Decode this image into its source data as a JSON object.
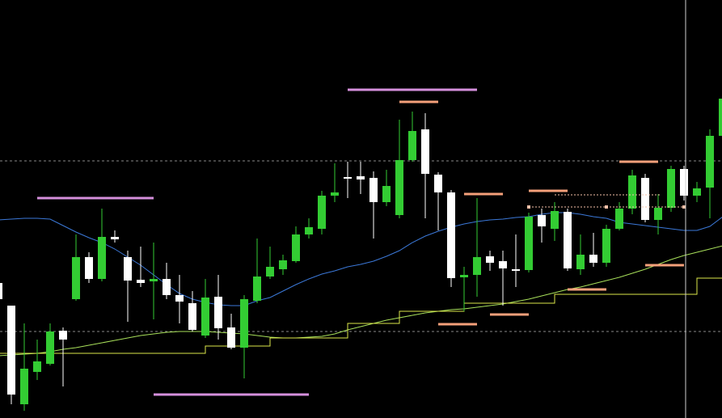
{
  "chart_data": {
    "type": "candlestick",
    "ylim": [
      0,
      517
    ],
    "hlines": [
      318,
      107
    ],
    "up_color": "#33cc33",
    "down_color": "#ffffff",
    "categories": [
      null,
      null,
      null,
      null,
      null,
      null,
      null,
      null,
      null,
      null,
      null,
      null,
      null,
      null,
      null,
      null,
      null,
      null,
      null,
      null,
      null,
      null,
      null,
      null,
      null,
      null,
      null,
      null,
      null,
      null,
      null,
      null,
      null,
      null,
      null,
      null,
      null,
      null,
      null,
      null,
      null,
      null,
      null,
      null,
      null,
      null,
      null,
      null,
      null,
      null,
      null,
      null,
      null,
      null,
      null,
      null,
      null
    ],
    "open": [
      167,
      139,
      17,
      57,
      67,
      108,
      147,
      199,
      172,
      224,
      199,
      171,
      169,
      172,
      152,
      142,
      102,
      150,
      112,
      87,
      145,
      175,
      184,
      194,
      227,
      234,
      275,
      298,
      299,
      297,
      267,
      251,
      319,
      357,
      301,
      279,
      174,
      177,
      200,
      194,
      184,
      183,
      251,
      234,
      255,
      184,
      202,
      192,
      234,
      259,
      297,
      245,
      260,
      308,
      275,
      285,
      349
    ],
    "high": [
      172,
      139,
      117,
      97,
      117,
      112,
      227,
      205,
      259,
      232,
      207,
      212,
      217,
      192,
      177,
      157,
      172,
      177,
      129,
      152,
      222,
      212,
      202,
      237,
      247,
      281,
      315,
      317,
      317,
      305,
      307,
      369,
      379,
      377,
      304,
      282,
      187,
      272,
      207,
      207,
      227,
      254,
      259,
      267,
      259,
      227,
      229,
      239,
      267,
      307,
      302,
      277,
      312,
      312,
      292,
      357,
      400
    ],
    "low": [
      142,
      17,
      9,
      47,
      65,
      39,
      145,
      167,
      169,
      217,
      119,
      162,
      122,
      147,
      117,
      107,
      99,
      97,
      85,
      49,
      142,
      172,
      177,
      192,
      222,
      227,
      267,
      272,
      277,
      222,
      262,
      247,
      317,
      247,
      232,
      162,
      132,
      150,
      182,
      139,
      162,
      180,
      217,
      219,
      182,
      177,
      187,
      187,
      232,
      252,
      242,
      227,
      255,
      269,
      267,
      247,
      340
    ],
    "close": [
      147,
      29,
      61,
      70,
      107,
      97,
      199,
      172,
      224,
      221,
      170,
      167,
      172,
      152,
      144,
      109,
      149,
      111,
      87,
      147,
      175,
      187,
      195,
      227,
      236,
      275,
      279,
      296,
      295,
      267,
      287,
      319,
      355,
      302,
      279,
      173,
      177,
      199,
      192,
      185,
      182,
      249,
      237,
      256,
      185,
      202,
      192,
      234,
      259,
      300,
      245,
      260,
      308,
      275,
      284,
      349,
      395
    ],
    "lines": [
      {
        "color": "#3b78d8",
        "step": false,
        "values": [
          245,
          246,
          247,
          247,
          246,
          238,
          230,
          223,
          217,
          209,
          199,
          189,
          177,
          165,
          154,
          147,
          143,
          140,
          139,
          139,
          145,
          149,
          157,
          165,
          172,
          178,
          182,
          187,
          190,
          194,
          200,
          207,
          217,
          225,
          231,
          236,
          240,
          243,
          245,
          246,
          248,
          249,
          252,
          254,
          254,
          252,
          249,
          247,
          242,
          240,
          238,
          236,
          234,
          232,
          232,
          237,
          249
        ]
      },
      {
        "color": "#a8e05a",
        "step": false,
        "values": [
          77,
          78,
          79,
          80,
          82,
          85,
          87,
          90,
          93,
          96,
          99,
          102,
          104,
          106,
          107,
          107,
          107,
          106,
          105,
          104,
          102,
          100,
          99,
          99,
          100,
          101,
          104,
          109,
          113,
          117,
          121,
          124,
          127,
          130,
          132,
          134,
          135,
          137,
          139,
          141,
          144,
          147,
          151,
          155,
          159,
          162,
          166,
          170,
          174,
          179,
          184,
          190,
          196,
          201,
          205,
          209,
          213
        ]
      },
      {
        "color": "#dde84a",
        "step": true,
        "values": [
          80,
          80,
          80,
          80,
          80,
          80,
          80,
          80,
          80,
          80,
          80,
          80,
          80,
          80,
          80,
          80,
          89,
          89,
          89,
          89,
          89,
          99,
          99,
          99,
          99,
          99,
          99,
          117,
          117,
          117,
          117,
          132,
          132,
          132,
          132,
          132,
          142,
          142,
          142,
          142,
          142,
          142,
          142,
          153,
          153,
          153,
          153,
          153,
          153,
          153,
          153,
          153,
          153,
          153,
          173,
          173,
          173
        ]
      }
    ],
    "levels": [
      {
        "color": "#d58fdc",
        "values": [
          406,
          272,
          29
        ]
      },
      {
        "color": "#f4a07a",
        "values": [
          391,
          277,
          281,
          317,
          189,
          159,
          128,
          116
        ]
      }
    ]
  }
}
